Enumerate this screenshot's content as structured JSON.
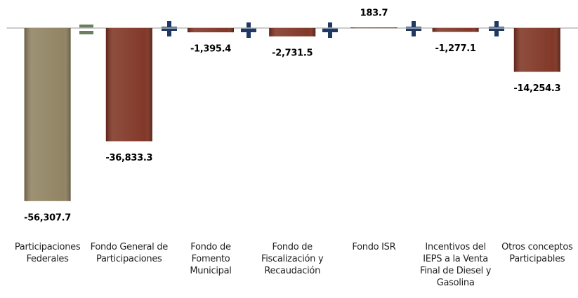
{
  "chart_data": {
    "type": "bar",
    "categories": [
      "Participaciones Federales",
      "Fondo General de Participaciones",
      "Fondo de Fomento Municipal",
      "Fondo de Fiscalización y Recaudación",
      "Fondo ISR",
      "Incentivos del IEPS a la Venta Final de Diesel y Gasolina",
      "Otros conceptos Participables"
    ],
    "values": [
      -56307.7,
      -36833.3,
      -1395.4,
      -2731.5,
      183.7,
      -1277.1,
      -14254.3
    ],
    "value_labels": [
      "-56,307.7",
      "-36,833.3",
      "-1,395.4",
      "-2,731.5",
      "183.7",
      "-1,277.1",
      "-14,254.3"
    ],
    "colors": [
      "#8c7e5c",
      "#7b2e1d",
      "#7b2e1d",
      "#7b2e1d",
      "#7b2e1d",
      "#7b2e1d",
      "#7b2e1d"
    ],
    "ylim": [
      -60000,
      9000
    ]
  }
}
